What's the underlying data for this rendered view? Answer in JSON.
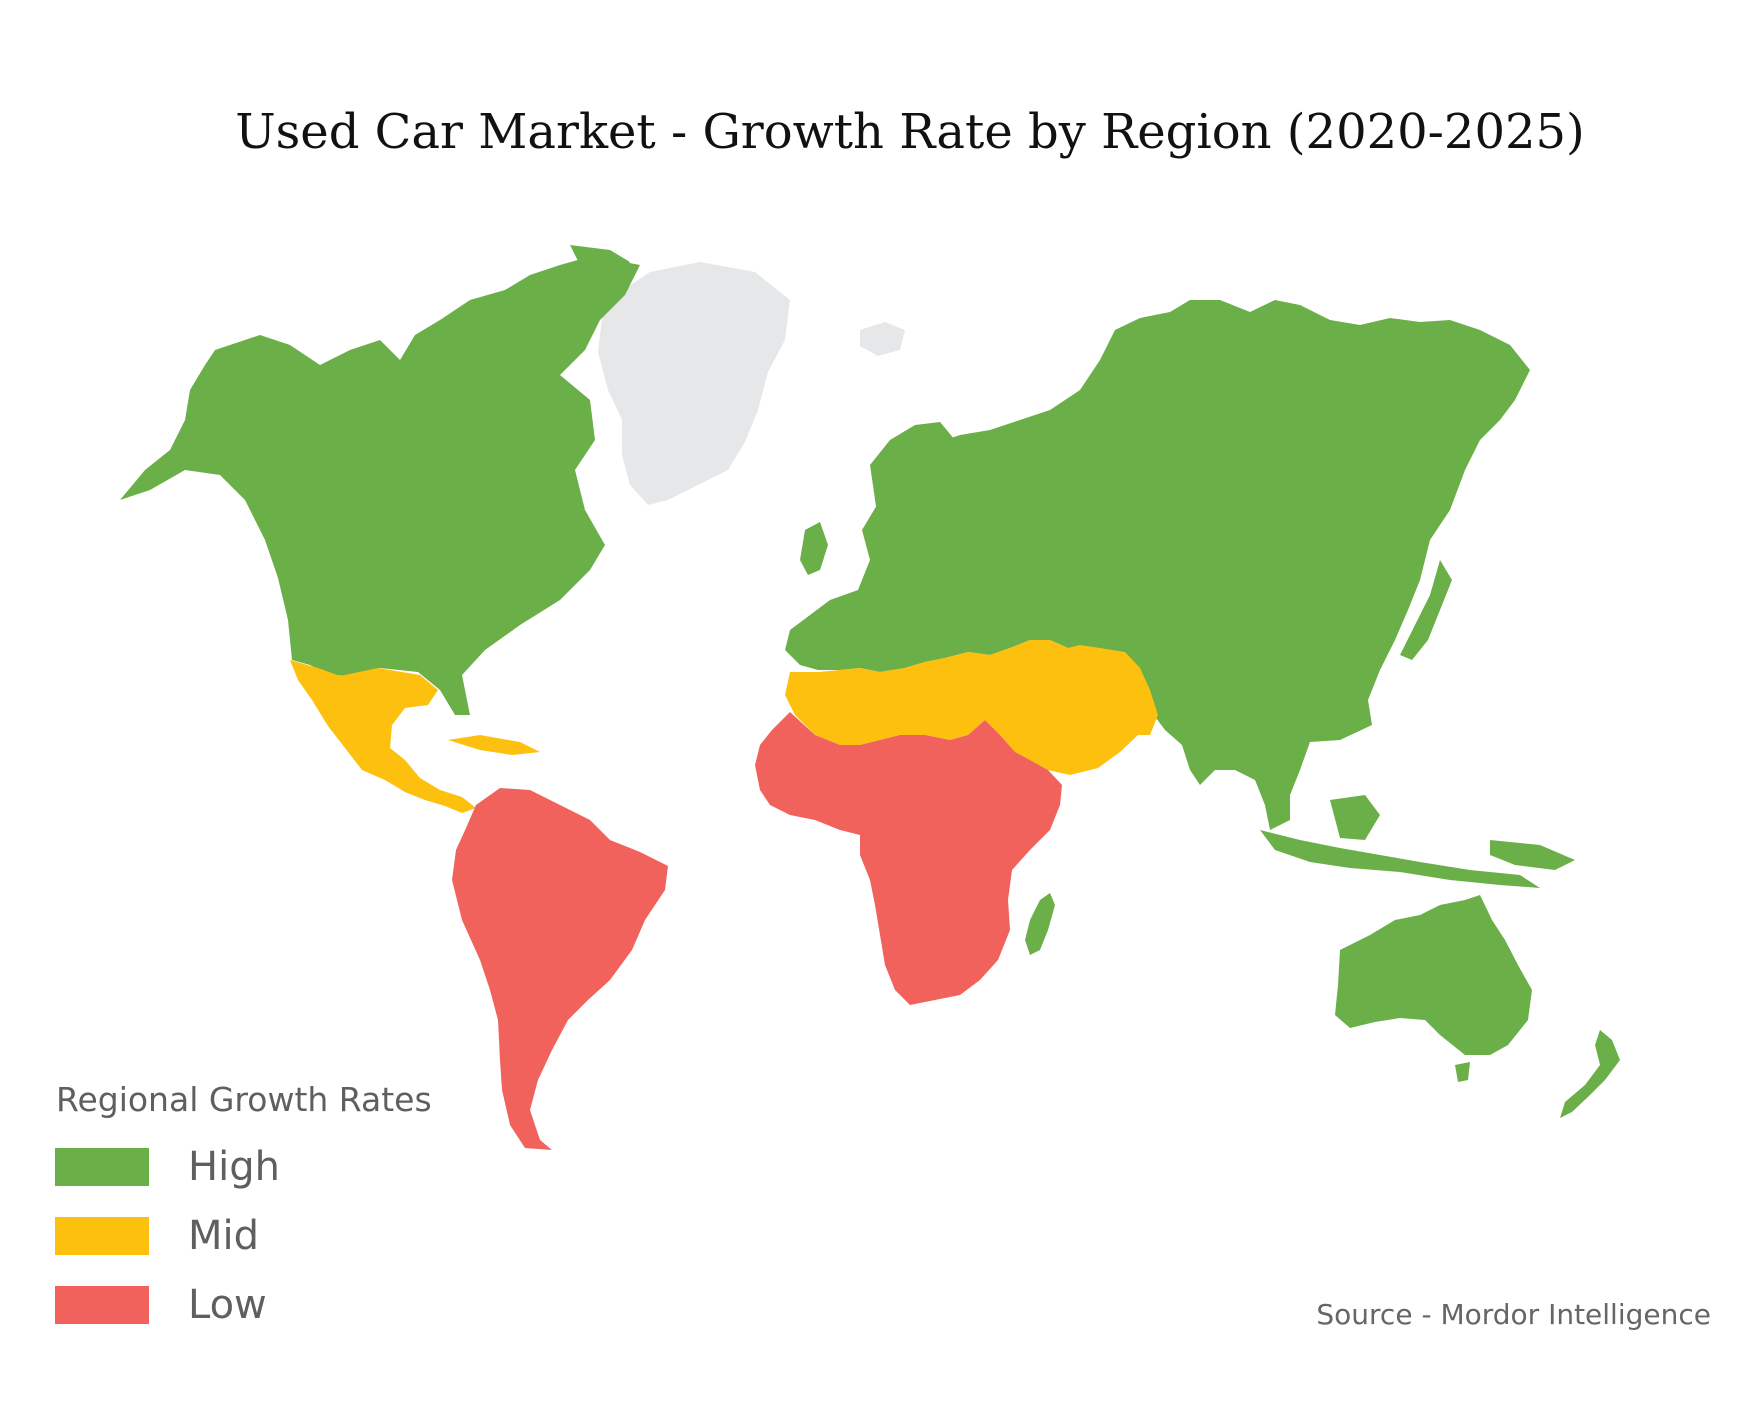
{
  "title": "Used Car Market - Growth Rate by Region (2020-2025)",
  "legend": {
    "title": "Regional Growth Rates",
    "items": [
      {
        "label": "High",
        "color": "#6aaf48"
      },
      {
        "label": "Mid",
        "color": "#fdc00f"
      },
      {
        "label": "Low",
        "color": "#f0625b"
      }
    ]
  },
  "regions": {
    "north_america": "High",
    "central_america_caribbean": "Mid",
    "south_america": "Low",
    "europe": "High",
    "north_africa_middle_east": "Mid",
    "sub_saharan_africa": "Low",
    "russia_asia": "High",
    "oceania": "High",
    "greenland": "No data"
  },
  "source": "Source - Mordor Intelligence"
}
